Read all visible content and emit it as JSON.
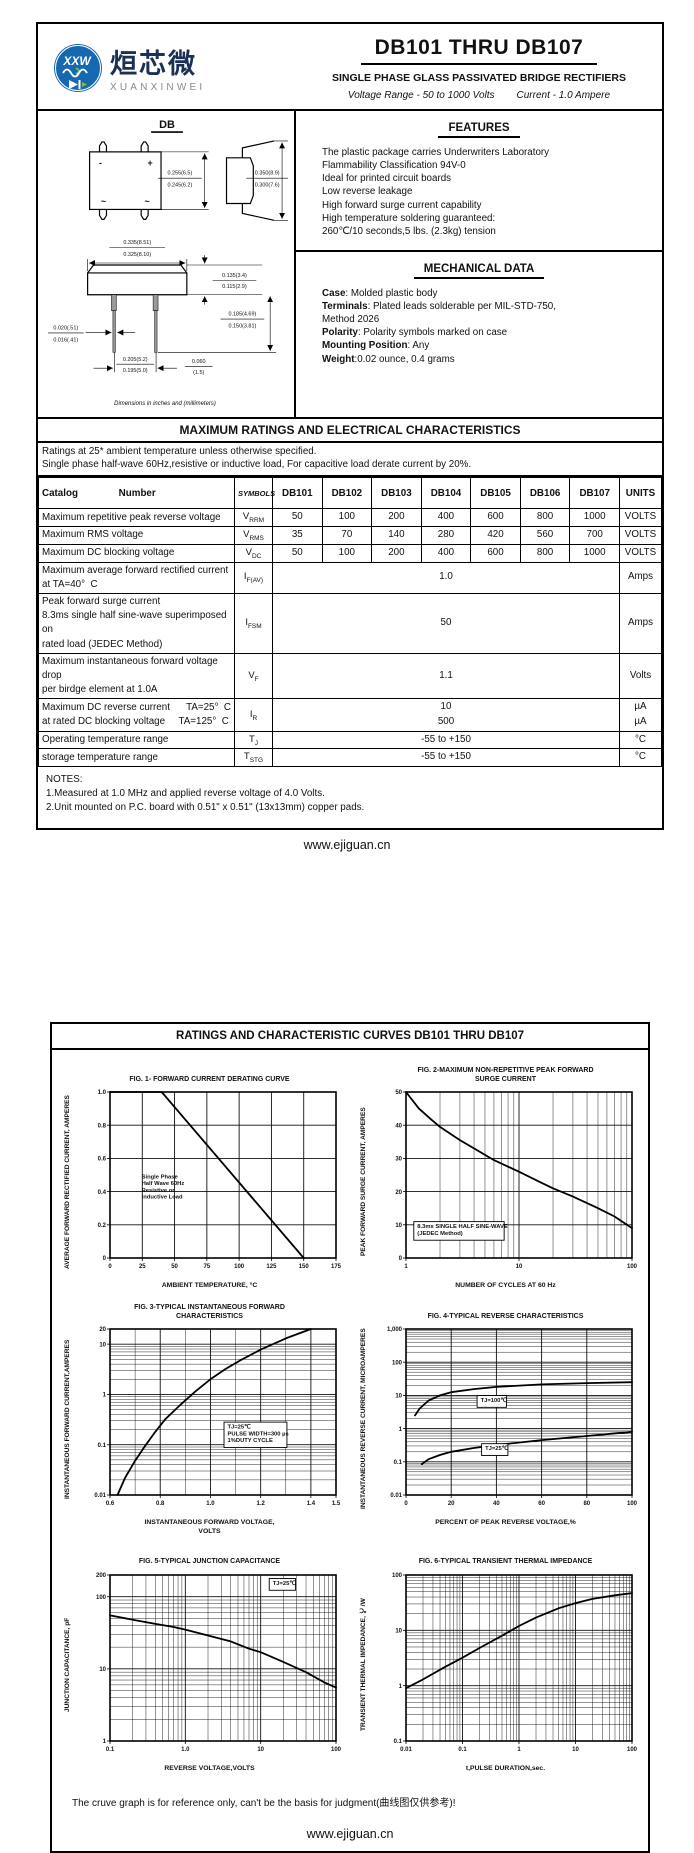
{
  "page1": {
    "logo": {
      "badge": "XXW",
      "cn": "烜芯微",
      "en": "XUANXINWEI"
    },
    "title": "DB101 THRU DB107",
    "subtitle": "SINGLE PHASE GLASS PASSIVATED BRIDGE RECTIFIERS",
    "range_line": {
      "voltage": "Voltage Range - 50 to 1000 Volts",
      "current": "Current -  1.0 Ampere"
    },
    "package": {
      "name": "DB",
      "caption": "Dimensions in inches and (millimeters)",
      "marks": {
        "minus": "-",
        "plus": "+",
        "ac1": "~",
        "ac2": "~"
      },
      "dims": {
        "height": [
          "0.255(6.5)",
          "0.245(6.2)"
        ],
        "depth": [
          "0.350(8.9)",
          "0.300(7.6)"
        ],
        "width": [
          "0.335(8.51)",
          "0.325(8.10)"
        ],
        "body_th": [
          "0.135(3.4)",
          "0.115(2.9)"
        ],
        "lead_len": [
          "0.185(4.69)",
          "0.150(3.81)"
        ],
        "lead_w": [
          "0.020(.51)",
          "0.016(.41)"
        ],
        "pitch": [
          "0.205(5.2)",
          "0.195(5.0)"
        ],
        "offset": [
          "0.060",
          "(1.5)"
        ]
      }
    },
    "features": {
      "heading": "FEATURES",
      "items": [
        "The plastic package carries Underwriters Laboratory",
        "Flammability Classification 94V-0",
        "Ideal for printed circuit boards",
        "Low reverse leakage",
        "High forward surge current capability",
        "High temperature soldering guaranteed:",
        "260℃/10 seconds,5 lbs. (2.3kg) tension"
      ]
    },
    "mechanical": {
      "heading": "MECHANICAL DATA",
      "items": [
        {
          "b": "Case",
          "t": ": Molded plastic body"
        },
        {
          "b": "Terminals",
          "t": ": Plated leads solderable per MIL-STD-750,"
        },
        {
          "b": "",
          "t": " Method 2026"
        },
        {
          "b": "Polarity",
          "t": ": Polarity symbols marked on case"
        },
        {
          "b": "Mounting Position",
          "t": ": Any"
        },
        {
          "b": "Weight",
          "t": ":0.02 ounce, 0.4 grams"
        }
      ]
    },
    "ratings": {
      "heading": "MAXIMUM RATINGS AND ELECTRICAL CHARACTERISTICS",
      "conditions": [
        "Ratings at 25* ambient temperature unless otherwise specified.",
        "Single phase half-wave 60Hz,resistive or inductive load, For capacitive load derate current by 20%."
      ],
      "col_headers": {
        "catalog": "Catalog",
        "number": "Number",
        "symbols": "SYMBOLS",
        "parts": [
          "DB101",
          "DB102",
          "DB103",
          "DB104",
          "DB105",
          "DB106",
          "DB107"
        ],
        "units": "UNITS"
      },
      "rows": [
        {
          "label": [
            "Maximum repetitive peak reverse voltage"
          ],
          "sym": [
            "V",
            "RRM"
          ],
          "values": [
            "50",
            "100",
            "200",
            "400",
            "600",
            "800",
            "1000"
          ],
          "units": "VOLTS"
        },
        {
          "label": [
            "Maximum RMS voltage"
          ],
          "sym": [
            "V",
            "RMS"
          ],
          "values": [
            "35",
            "70",
            "140",
            "280",
            "420",
            "560",
            "700"
          ],
          "units": "VOLTS"
        },
        {
          "label": [
            "Maximum DC blocking voltage"
          ],
          "sym": [
            "V",
            "DC"
          ],
          "values": [
            "50",
            "100",
            "200",
            "400",
            "600",
            "800",
            "1000"
          ],
          "units": "VOLTS"
        },
        {
          "label": [
            "Maximum average forward rectified current",
            "at TA=40°  C"
          ],
          "sym": [
            "I",
            "F(AV)"
          ],
          "span": "1.0",
          "units": "Amps"
        },
        {
          "label": [
            "Peak forward surge current",
            "8.3ms single half sine-wave superimposed on",
            "rated load (JEDEC Method)"
          ],
          "sym": [
            "I",
            "FSM"
          ],
          "span": "50",
          "units": "Amps"
        },
        {
          "label": [
            "Maximum instantaneous forward voltage drop",
            "per birdge element at 1.0A"
          ],
          "sym": [
            "V",
            "F"
          ],
          "span": "1.1",
          "units": "Volts"
        },
        {
          "label": [
            "Maximum DC reverse current      TA=25°  C",
            "at rated DC blocking voltage     TA=125°  C"
          ],
          "sym": [
            "I",
            "R"
          ],
          "span": [
            "10",
            "500"
          ],
          "units": [
            "µA",
            "µA"
          ]
        },
        {
          "label": [
            "Operating temperature range"
          ],
          "sym": [
            "T",
            "J"
          ],
          "span": "-55 to +150",
          "units": "°C"
        },
        {
          "label": [
            "storage temperature range"
          ],
          "sym": [
            "T",
            "STG"
          ],
          "span": "-55 to +150",
          "units": "°C"
        }
      ]
    },
    "notes": {
      "heading": "NOTES:",
      "items": [
        "1.Measured at 1.0 MHz and applied reverse voltage of 4.0 Volts.",
        "2.Unit mounted on P.C. board with 0.51\"  x 0.51\"  (13x13mm) copper pads."
      ]
    },
    "site": "www.ejiguan.cn"
  },
  "page2": {
    "heading": "RATINGS AND CHARACTERISTIC CURVES DB101 THRU DB107",
    "disclaimer": "The cruve graph is for reference only, can't be the basis for judgment(曲线图仅供参考)!",
    "site": "www.ejiguan.cn"
  },
  "chart_data": [
    {
      "type": "line",
      "title": "FIG. 1- FORWARD CURRENT DERATING CURVE",
      "xlabel": "AMBIENT TEMPERATURE, °C",
      "ylabel": "AVERAGE FORWARD RECTIFIED CURRENT, AMPERES",
      "x": {
        "scale": "linear",
        "min": 0,
        "max": 175,
        "minor": 25,
        "ticks": [
          0,
          25,
          50,
          75,
          100,
          125,
          150,
          175
        ],
        "labels": [
          "0",
          "25",
          "50",
          "75",
          "100",
          "125",
          "150",
          "175"
        ]
      },
      "y": {
        "scale": "linear",
        "min": 0,
        "max": 1.0,
        "minor": 0.2,
        "ticks": [
          0,
          0.2,
          0.4,
          0.6,
          0.8,
          1.0
        ],
        "labels": [
          "0",
          "0.2",
          "0.4",
          "0.6",
          "0.8",
          "1.0"
        ]
      },
      "series": [
        {
          "name": "derating",
          "points": [
            [
              0,
              1.0
            ],
            [
              40,
              1.0
            ],
            [
              150,
              0
            ]
          ]
        }
      ],
      "annotations": [
        {
          "lines": [
            "Single Phase",
            "Half Wave 60Hz",
            "Resistive or",
            "Inductive Load"
          ],
          "fx": 0.14,
          "fy": 0.52,
          "boxed": false
        }
      ]
    },
    {
      "type": "line",
      "title": "FIG. 2-MAXIMUM NON-REPETITIVE PEAK FORWARD\nSURGE CURRENT",
      "xlabel": "NUMBER OF CYCLES AT 60 Hz",
      "ylabel": "PEAK  FORWARD SURGE CURRENT, AMPERES",
      "x": {
        "scale": "log",
        "min": 1,
        "max": 100,
        "ticks": [
          1,
          10,
          100
        ],
        "labels": [
          "1",
          "10",
          "100"
        ]
      },
      "y": {
        "scale": "linear",
        "min": 0,
        "max": 50,
        "minor": 10,
        "ticks": [
          0,
          10,
          20,
          30,
          40,
          50
        ],
        "labels": [
          "0",
          "10",
          "20",
          "30",
          "40",
          "50"
        ]
      },
      "series": [
        {
          "name": "surge",
          "points": [
            [
              1,
              50
            ],
            [
              1.3,
              45
            ],
            [
              1.7,
              41.5
            ],
            [
              2,
              39.5
            ],
            [
              3,
              35.5
            ],
            [
              4,
              33
            ],
            [
              6,
              29.5
            ],
            [
              10,
              26
            ],
            [
              15,
              23
            ],
            [
              20,
              21
            ],
            [
              30,
              18.5
            ],
            [
              50,
              15
            ],
            [
              70,
              12.5
            ],
            [
              100,
              9
            ]
          ]
        }
      ],
      "annotations": [
        {
          "lines": [
            "8.3ms SINGLE HALF SINE-WAVE",
            "(JEDEC Method)"
          ],
          "fx": 0.05,
          "fy": 0.82,
          "boxed": true
        }
      ]
    },
    {
      "type": "line",
      "title": "FIG. 3-TYPICAL INSTANTANEOUS FORWARD\nCHARACTERISTICS",
      "xlabel": "INSTANTANEOUS FORWARD VOLTAGE,\nVOLTS",
      "ylabel": "INSTANTANEOUS FORWARD CURRENT,AMPERES",
      "x": {
        "scale": "linear",
        "min": 0.6,
        "max": 1.5,
        "minor": 0.1,
        "ticks": [
          0.6,
          0.8,
          1.0,
          1.2,
          1.4,
          1.5
        ],
        "labels": [
          "0.6",
          "0.8",
          "1.0",
          "1.2",
          "1.4",
          "1.5"
        ]
      },
      "y": {
        "scale": "log",
        "min": 0.01,
        "max": 20,
        "ticks": [
          0.01,
          0.1,
          1,
          10,
          20
        ],
        "labels": [
          "0.01",
          "0.1",
          "1",
          "10",
          "20"
        ]
      },
      "series": [
        {
          "name": "vf",
          "points": [
            [
              0.63,
              0.01
            ],
            [
              0.66,
              0.022
            ],
            [
              0.7,
              0.048
            ],
            [
              0.74,
              0.095
            ],
            [
              0.78,
              0.18
            ],
            [
              0.82,
              0.32
            ],
            [
              0.88,
              0.62
            ],
            [
              0.94,
              1.15
            ],
            [
              1.0,
              2.0
            ],
            [
              1.06,
              3.2
            ],
            [
              1.12,
              4.8
            ],
            [
              1.2,
              7.8
            ],
            [
              1.3,
              13
            ],
            [
              1.4,
              20
            ]
          ]
        }
      ],
      "annotations": [
        {
          "lines": [
            "TJ=25℃",
            "PULSE WIDTH=300 µs",
            "1%DUTY CYCLE"
          ],
          "fx": 0.52,
          "fy": 0.6,
          "boxed": true
        }
      ]
    },
    {
      "type": "line",
      "title": "FIG. 4-TYPICAL REVERSE CHARACTERISTICS",
      "xlabel": "PERCENT OF PEAK REVERSE VOLTAGE,%",
      "ylabel": "INSTANTANEOUS REVERSE CURRENT, MICROAMPERES",
      "x": {
        "scale": "linear",
        "min": 0,
        "max": 100,
        "minor": 20,
        "ticks": [
          0,
          20,
          40,
          60,
          80,
          100
        ],
        "labels": [
          "0",
          "20",
          "40",
          "60",
          "80",
          "100"
        ]
      },
      "y": {
        "scale": "log",
        "min": 0.01,
        "max": 1000,
        "ticks": [
          0.01,
          0.1,
          1,
          10,
          100,
          1000
        ],
        "labels": [
          "0.01",
          "0.1",
          "1",
          "10",
          "100",
          "1,000"
        ]
      },
      "series": [
        {
          "name": "TJ=100℃",
          "points": [
            [
              4,
              2.5
            ],
            [
              6,
              4
            ],
            [
              10,
              7
            ],
            [
              15,
              10
            ],
            [
              20,
              12.5
            ],
            [
              30,
              15.5
            ],
            [
              40,
              18
            ],
            [
              60,
              21.5
            ],
            [
              80,
              23.5
            ],
            [
              100,
              25
            ]
          ]
        },
        {
          "name": "TJ=25℃",
          "points": [
            [
              7,
              0.085
            ],
            [
              10,
              0.12
            ],
            [
              15,
              0.16
            ],
            [
              20,
              0.2
            ],
            [
              30,
              0.26
            ],
            [
              40,
              0.32
            ],
            [
              60,
              0.45
            ],
            [
              80,
              0.6
            ],
            [
              100,
              0.8
            ]
          ]
        }
      ],
      "annotations": [
        {
          "lines": [
            "TJ=100℃"
          ],
          "fx": 0.33,
          "fy": 0.44,
          "boxed": true
        },
        {
          "lines": [
            "TJ=25℃"
          ],
          "fx": 0.35,
          "fy": 0.73,
          "boxed": true
        }
      ]
    },
    {
      "type": "line",
      "title": "FIG. 5-TYPICAL JUNCTION CAPACITANCE",
      "xlabel": "REVERSE VOLTAGE,VOLTS",
      "ylabel": "JUNCTION CAPACITANCE, pF",
      "x": {
        "scale": "log",
        "min": 0.1,
        "max": 100,
        "ticks": [
          0.1,
          1,
          10,
          100
        ],
        "labels": [
          "0.1",
          "1.0",
          "10",
          "100"
        ]
      },
      "y": {
        "scale": "log",
        "min": 1,
        "max": 200,
        "ticks": [
          1,
          10,
          100,
          200
        ],
        "labels": [
          "1",
          "10",
          "100",
          "200"
        ]
      },
      "series": [
        {
          "name": "cj",
          "points": [
            [
              0.1,
              55
            ],
            [
              0.2,
              48
            ],
            [
              0.4,
              42
            ],
            [
              0.7,
              38
            ],
            [
              1,
              35
            ],
            [
              2,
              29
            ],
            [
              4,
              24
            ],
            [
              7,
              19
            ],
            [
              10,
              17
            ],
            [
              20,
              12.5
            ],
            [
              40,
              9
            ],
            [
              70,
              6.5
            ],
            [
              100,
              5.5
            ]
          ]
        }
      ],
      "annotations": [
        {
          "lines": [
            "TJ=25℃"
          ],
          "fx": 0.72,
          "fy": 0.06,
          "boxed": true
        }
      ]
    },
    {
      "type": "line",
      "title": "FIG. 6-TYPICAL TRANSIENT THERMAL IMPEDANCE",
      "xlabel": "t,PULSE DURATION,sec.",
      "ylabel": "TRANSIENT THERMAL IMPEDANCE, ℃/W",
      "x": {
        "scale": "log",
        "min": 0.01,
        "max": 100,
        "ticks": [
          0.01,
          0.1,
          1,
          10,
          100
        ],
        "labels": [
          "0.01",
          "0.1",
          "1",
          "10",
          "100"
        ]
      },
      "y": {
        "scale": "log",
        "min": 0.1,
        "max": 100,
        "ticks": [
          0.1,
          1,
          10,
          100
        ],
        "labels": [
          "0.1",
          "1",
          "10",
          "100"
        ]
      },
      "series": [
        {
          "name": "zth",
          "points": [
            [
              0.01,
              0.9
            ],
            [
              0.02,
              1.3
            ],
            [
              0.05,
              2.2
            ],
            [
              0.1,
              3.2
            ],
            [
              0.2,
              4.8
            ],
            [
              0.5,
              8
            ],
            [
              1,
              12
            ],
            [
              2,
              17
            ],
            [
              5,
              25
            ],
            [
              10,
              31
            ],
            [
              20,
              37
            ],
            [
              50,
              43
            ],
            [
              100,
              47
            ]
          ]
        }
      ],
      "annotations": []
    }
  ]
}
